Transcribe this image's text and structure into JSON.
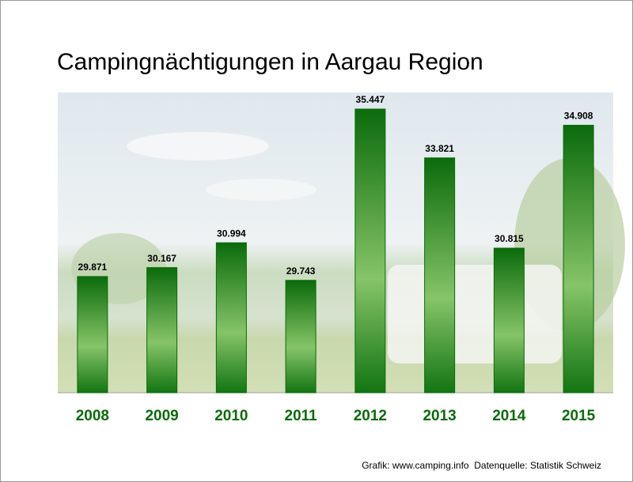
{
  "chart_data": {
    "type": "bar",
    "title": "Campingnächtigungen in Aargau Region",
    "categories": [
      "2008",
      "2009",
      "2010",
      "2011",
      "2012",
      "2013",
      "2014",
      "2015"
    ],
    "values": [
      29871,
      30167,
      30994,
      29743,
      35447,
      33821,
      30815,
      34908
    ],
    "value_labels": [
      "29.871",
      "30.167",
      "30.994",
      "29.743",
      "35.447",
      "33.821",
      "30.815",
      "34.908"
    ],
    "color": "#0b6b0b",
    "ylim": [
      26000,
      36000
    ],
    "source": "Grafik: www.camping.info  Datenquelle: Statistik Schweiz"
  }
}
